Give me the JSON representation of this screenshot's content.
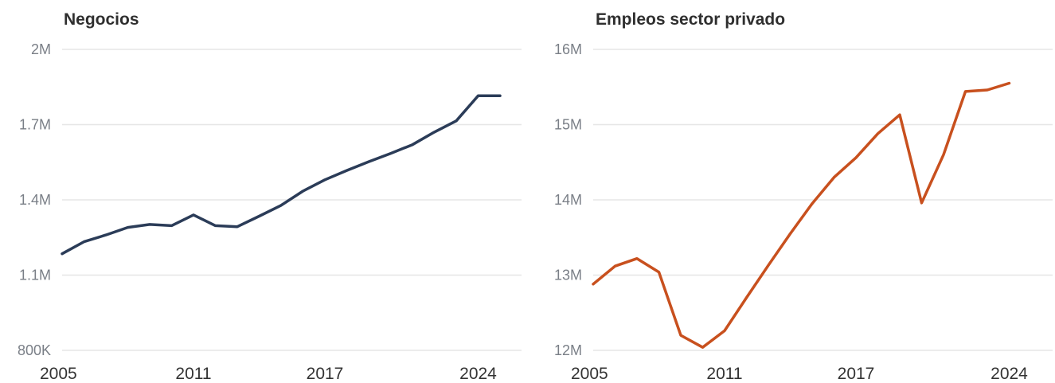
{
  "chart_data": [
    {
      "type": "line",
      "title": "Negocios",
      "xlabel": "",
      "ylabel": "",
      "xlim": [
        2005,
        2025
      ],
      "ylim": [
        800000,
        2000000
      ],
      "yticks": [
        800000,
        1100000,
        1400000,
        1700000,
        2000000
      ],
      "ytick_labels": [
        "800K",
        "1.1M",
        "1.4M",
        "1.7M",
        "2M"
      ],
      "xticks": [
        2005,
        2011,
        2017,
        2024
      ],
      "xtick_labels": [
        "2005",
        "2011",
        "2017",
        "2024"
      ],
      "grid": true,
      "color": "#2b3c58",
      "x": [
        2005,
        2006,
        2007,
        2008,
        2009,
        2010,
        2011,
        2012,
        2013,
        2014,
        2015,
        2016,
        2017,
        2018,
        2019,
        2020,
        2021,
        2022,
        2023,
        2024,
        2025
      ],
      "y": [
        1185000,
        1233000,
        1260000,
        1290000,
        1302000,
        1297000,
        1340000,
        1297000,
        1293000,
        1335000,
        1378000,
        1435000,
        1480000,
        1517000,
        1552000,
        1585000,
        1620000,
        1670000,
        1715000,
        1815000,
        1815000
      ]
    },
    {
      "type": "line",
      "title": "Empleos sector privado",
      "xlabel": "",
      "ylabel": "",
      "xlim": [
        2005,
        2025
      ],
      "ylim": [
        12000000,
        16000000
      ],
      "yticks": [
        12000000,
        13000000,
        14000000,
        15000000,
        16000000
      ],
      "ytick_labels": [
        "12M",
        "13M",
        "14M",
        "15M",
        "16M"
      ],
      "xticks": [
        2005,
        2011,
        2017,
        2024
      ],
      "xtick_labels": [
        "2005",
        "2011",
        "2017",
        "2024"
      ],
      "grid": true,
      "color": "#c8501e",
      "x": [
        2005,
        2006,
        2007,
        2008,
        2009,
        2010,
        2011,
        2012,
        2013,
        2014,
        2015,
        2016,
        2017,
        2018,
        2019,
        2020,
        2021,
        2022,
        2023,
        2024
      ],
      "y": [
        12880000,
        13120000,
        13220000,
        13040000,
        12200000,
        12040000,
        12260000,
        12700000,
        13130000,
        13550000,
        13950000,
        14300000,
        14560000,
        14880000,
        15130000,
        13960000,
        14600000,
        15440000,
        15460000,
        15550000
      ]
    }
  ]
}
